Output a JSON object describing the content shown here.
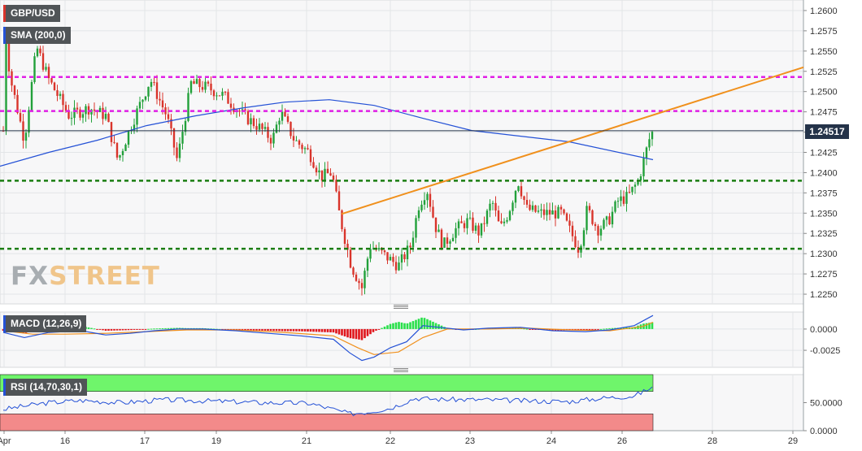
{
  "labels": {
    "symbol": "GBP/USD",
    "sma": "SMA (200,0)",
    "macd": "MACD (12,26,9)",
    "rsi": "RSI (14,70,30,1)",
    "last_price": "1.24517",
    "watermark_fx": "FX",
    "watermark_street": "STREET"
  },
  "colors": {
    "up": "#22a03a",
    "down": "#d9342b",
    "sma": "#2451d6",
    "trendline": "#f0901c",
    "resistance": "#e11fe6",
    "support": "#1b7d12",
    "last_price_line": "#243349",
    "macd_line": "#2451d6",
    "signal_line": "#f0901c",
    "rsi_line": "#2451d6",
    "rsi_overbought": "#6ff56b",
    "rsi_oversold": "#f38a8a"
  },
  "chart_data": [
    {
      "type": "candlestick",
      "title": "GBP/USD",
      "timeframe": "hourly",
      "x_tick_labels": [
        "Apr",
        "16",
        "17",
        "19",
        "21",
        "22",
        "23",
        "24",
        "26",
        "28",
        "29"
      ],
      "ylim": [
        1.2238,
        1.2613
      ],
      "y_ticks": [
        "1.2600",
        "1.2575",
        "1.2550",
        "1.2525",
        "1.2500",
        "1.2475",
        "1.2450",
        "1.2425",
        "1.2400",
        "1.2375",
        "1.2350",
        "1.2325",
        "1.2300",
        "1.2275",
        "1.2250"
      ],
      "last_price": 1.24517,
      "resistance_levels": [
        1.2518,
        1.2476
      ],
      "support_levels": [
        1.239,
        1.2306
      ],
      "trendline": {
        "from": [
          "21",
          1.2349
        ],
        "to": [
          "29",
          1.253
        ]
      },
      "sma_200": [
        1.2408,
        1.2425,
        1.244,
        1.2458,
        1.247,
        1.248,
        1.2487,
        1.249,
        1.2483,
        1.2467,
        1.2452,
        1.2438,
        1.2416
      ],
      "grid": true
    },
    {
      "type": "line",
      "title": "MACD (12,26,9)",
      "ylim": [
        -0.0045,
        0.002
      ],
      "y_ticks": [
        "0.0000",
        "-0.0025"
      ],
      "series": [
        "MACD",
        "Signal",
        "Histogram"
      ],
      "grid": true
    },
    {
      "type": "line",
      "title": "RSI (14,70,30,1)",
      "ylim": [
        0,
        100
      ],
      "y_ticks": [
        "50.0000",
        "0.0000"
      ],
      "overbought": 70,
      "oversold": 30,
      "grid": true
    }
  ]
}
